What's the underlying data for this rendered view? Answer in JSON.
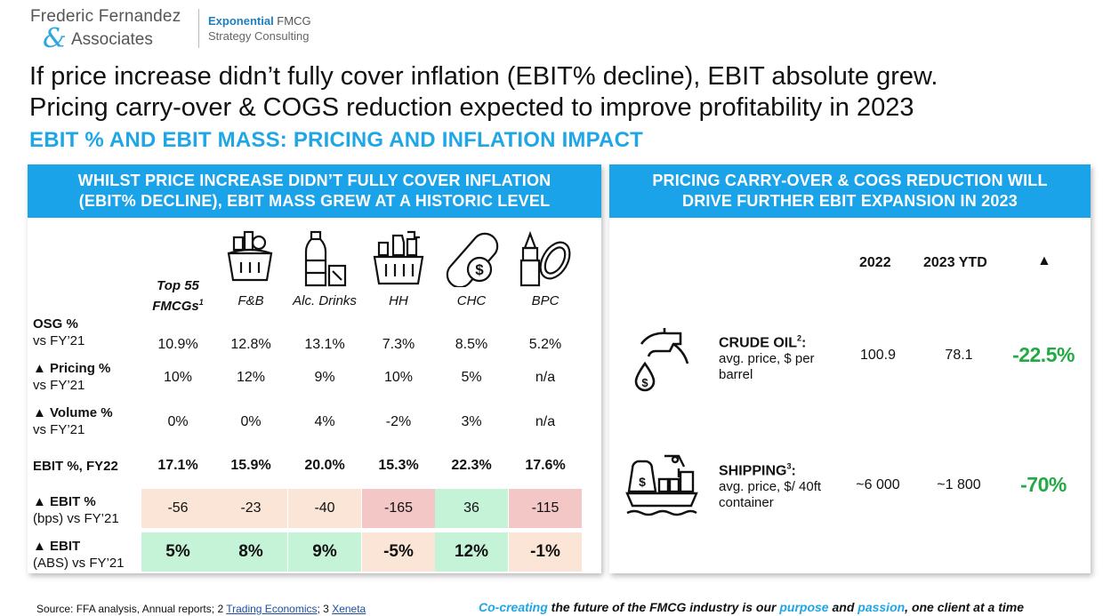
{
  "logo": {
    "line1": "Frederic Fernandez",
    "amp": "&",
    "line2": "Associates",
    "exp_bold": "Exponential",
    "exp_rest": " FMCG",
    "exp_line2": "Strategy Consulting"
  },
  "headline_1": "If price increase didn’t fully cover inflation (EBIT% decline), EBIT absolute grew.",
  "headline_2": "Pricing carry-over & COGS reduction expected to improve profitability in 2023",
  "subhead": "EBIT % AND EBIT MASS: PRICING AND INFLATION IMPACT",
  "left_panel": {
    "title_1": "WHILST PRICE INCREASE DIDN’T FULLY COVER INFLATION",
    "title_2": "(EBIT% DECLINE), EBIT MASS GREW AT A HISTORIC LEVEL",
    "columns": [
      {
        "label_1": "Top 55",
        "label_2": "FMCGs",
        "sup": "1",
        "icon": "none"
      },
      {
        "label_1": "",
        "label_2": "F&B",
        "icon": "food-basket-icon"
      },
      {
        "label_1": "",
        "label_2": "Alc. Drinks",
        "icon": "bottle-glass-icon"
      },
      {
        "label_1": "",
        "label_2": "HH",
        "icon": "cleaning-basket-icon"
      },
      {
        "label_1": "",
        "label_2": "CHC",
        "icon": "pill-dollar-icon"
      },
      {
        "label_1": "",
        "label_2": "BPC",
        "icon": "lipstick-mirror-icon"
      }
    ],
    "rows": [
      {
        "label_bold": "OSG %",
        "label_2": "vs FY’21",
        "values": [
          "10.9%",
          "12.8%",
          "13.1%",
          "7.3%",
          "8.5%",
          "5.2%"
        ]
      },
      {
        "label_bold": "▲ Pricing %",
        "label_2": "vs FY’21",
        "values": [
          "10%",
          "12%",
          "9%",
          "10%",
          "5%",
          "n/a"
        ]
      },
      {
        "label_bold": "▲ Volume %",
        "label_2": "vs FY’21",
        "values": [
          "0%",
          "0%",
          "4%",
          "-2%",
          "3%",
          "n/a"
        ]
      },
      {
        "label_bold": "EBIT %, FY22",
        "label_2": "",
        "values": [
          "17.1%",
          "15.9%",
          "20.0%",
          "15.3%",
          "22.3%",
          "17.6%"
        ]
      },
      {
        "label_bold": "▲ EBIT %",
        "label_2": "(bps) vs FY’21",
        "values": [
          "-56",
          "-23",
          "-40",
          "-165",
          "36",
          "-115"
        ]
      },
      {
        "label_bold": "▲ EBIT",
        "label_2": "(ABS) vs FY’21",
        "values": [
          "5%",
          "8%",
          "9%",
          "-5%",
          "12%",
          "-1%"
        ]
      }
    ],
    "colors": {
      "peach": "#fbe5d6",
      "red": "#f4c7c7",
      "green": "#c5f3d8"
    }
  },
  "right_panel": {
    "title_1": "PRICING CARRY-OVER & COGS REDUCTION WILL",
    "title_2": "DRIVE FURTHER EBIT EXPANSION IN 2023",
    "col_2022": "2022",
    "col_2023": "2023 YTD",
    "col_delta": "▲",
    "items": [
      {
        "name": "CRUDE OIL",
        "sup": "2",
        "suffix": ":",
        "desc_1": "avg. price, $ per",
        "desc_2": "barrel",
        "v2022": "100.9",
        "v2023": "78.1",
        "change": "-22.5%",
        "icon": "fuel-nozzle-icon"
      },
      {
        "name": "SHIPPING",
        "sup": "3",
        "suffix": ":",
        "desc_1": "avg. price, $/ 40ft",
        "desc_2": "container",
        "v2022": "~6 000",
        "v2023": "~1 800",
        "change": "-70%",
        "icon": "cargo-ship-icon"
      }
    ],
    "change_color": "#22aa44"
  },
  "footer": {
    "source_prefix": "Source: FFA analysis, Annual reports; 2 ",
    "link1": "Trading Economics",
    "mid": "; 3 ",
    "link2": "Xeneta",
    "tag_1": "Co-creating",
    "tag_2": " the future of the FMCG industry is our ",
    "tag_3": "purpose",
    "tag_4": " and ",
    "tag_5": "passion",
    "tag_6": ", one client at a time"
  },
  "accent_color": "#1aa3e8"
}
